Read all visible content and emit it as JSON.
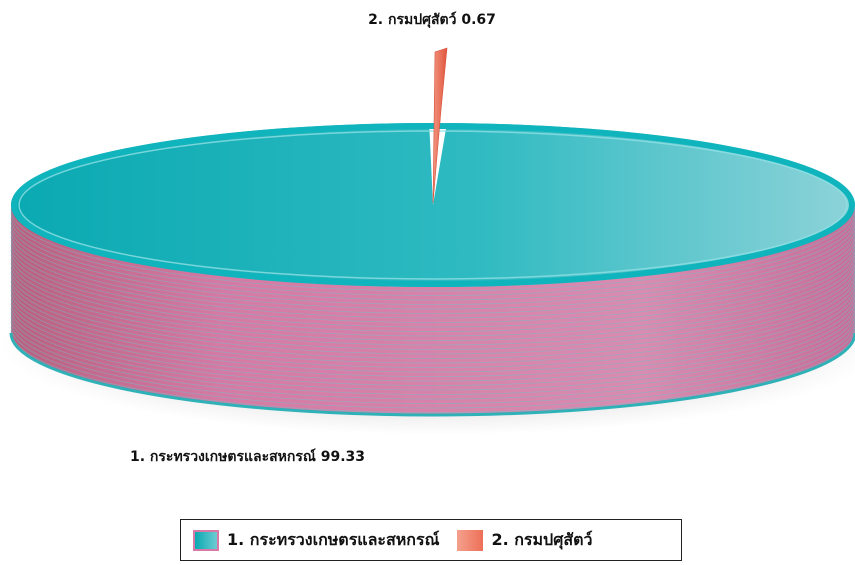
{
  "colors": {
    "series_1_top": "#14b6be",
    "series_1_side": "#d97aa6",
    "series_2": "#ee6f58",
    "rim": "#0fb4bd"
  },
  "chart_data": {
    "type": "pie",
    "categories": [
      "1. กระทรวงเกษตรและสหกรณ์",
      "2. กรมปศุสัตว์"
    ],
    "values": [
      99.33,
      0.67
    ],
    "data_labels": [
      "1. กระทรวงเกษตรและสหกรณ์ 99.33",
      "2. กรมปศุสัตว์ 0.67"
    ],
    "legend": [
      "1. กระทรวงเกษตรและสหกรณ์",
      "2. กรมปศุสัตว์"
    ],
    "legend_position": "bottom",
    "style": "3d",
    "title": ""
  }
}
